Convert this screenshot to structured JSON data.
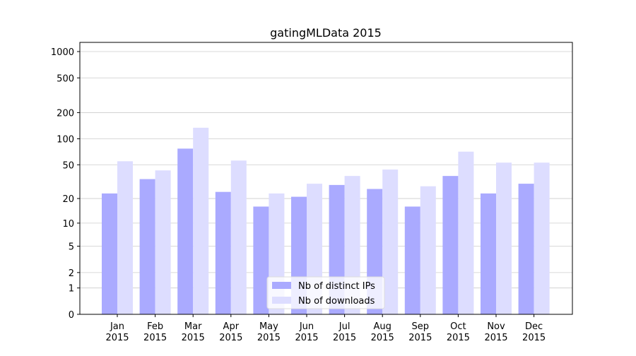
{
  "chart_data": {
    "type": "bar",
    "title": "gatingMLData 2015",
    "categories": [
      "Jan\n2015",
      "Feb\n2015",
      "Mar\n2015",
      "Apr\n2015",
      "May\n2015",
      "Jun\n2015",
      "Jul\n2015",
      "Aug\n2015",
      "Sep\n2015",
      "Oct\n2015",
      "Nov\n2015",
      "Dec\n2015"
    ],
    "series": [
      {
        "name": "Nb of distinct IPs",
        "color": "#aaaaff",
        "values": [
          23,
          34,
          77,
          24,
          16,
          21,
          29,
          26,
          16,
          37,
          23,
          30
        ]
      },
      {
        "name": "Nb of downloads",
        "color": "#ddddff",
        "values": [
          55,
          43,
          134,
          56,
          23,
          30,
          37,
          44,
          28,
          71,
          53,
          53
        ]
      }
    ],
    "yscale": "log1p",
    "ylim": [
      0,
      1273
    ],
    "yticks": [
      0,
      1,
      2,
      5,
      10,
      20,
      50,
      100,
      200,
      500,
      1000
    ],
    "grid": true,
    "legend": "lower center"
  }
}
